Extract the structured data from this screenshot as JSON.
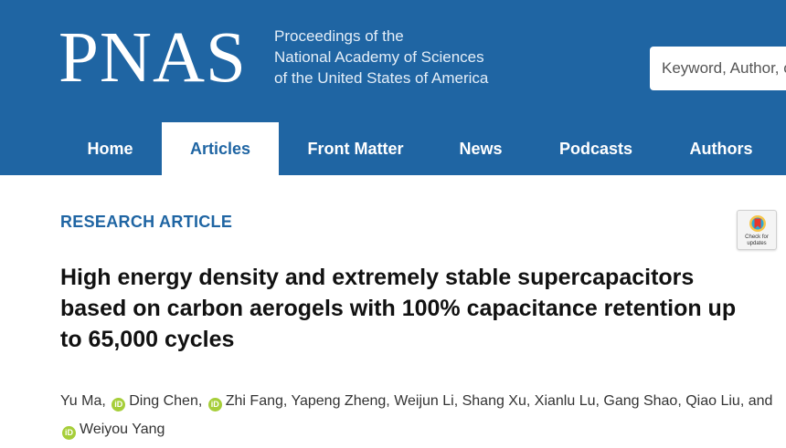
{
  "header": {
    "logo": "PNAS",
    "subtitle": [
      "Proceedings of the",
      "National Academy of Sciences",
      "of the United States of America"
    ],
    "search_placeholder": "Keyword, Author, or DOI",
    "colors": {
      "brand": "#1f65a3",
      "orcid": "#a6ce39"
    }
  },
  "nav": {
    "items": [
      {
        "label": "Home",
        "active": false
      },
      {
        "label": "Articles",
        "active": true
      },
      {
        "label": "Front Matter",
        "active": false
      },
      {
        "label": "News",
        "active": false
      },
      {
        "label": "Podcasts",
        "active": false
      },
      {
        "label": "Authors",
        "active": false
      }
    ]
  },
  "badge": {
    "label": "Check for updates",
    "icon": "bookmark-icon"
  },
  "article": {
    "type": "RESEARCH ARTICLE",
    "title": "High energy density and extremely stable supercapacitors based on carbon aerogels with 100% capacitance retention up to 65,000 cycles",
    "authors": [
      {
        "name": "Yu Ma",
        "orcid": false
      },
      {
        "name": "Ding Chen",
        "orcid": true
      },
      {
        "name": "Zhi Fang",
        "orcid": true
      },
      {
        "name": "Yapeng Zheng",
        "orcid": false
      },
      {
        "name": "Weijun Li",
        "orcid": false
      },
      {
        "name": "Shang Xu",
        "orcid": false
      },
      {
        "name": "Xianlu Lu",
        "orcid": false
      },
      {
        "name": "Gang Shao",
        "orcid": false
      },
      {
        "name": "Qiao Liu",
        "orcid": false
      },
      {
        "name": "Weiyou Yang",
        "orcid": true
      }
    ],
    "author_separator": ", ",
    "author_last_separator": ", and ",
    "orcid_glyph": "iD"
  }
}
